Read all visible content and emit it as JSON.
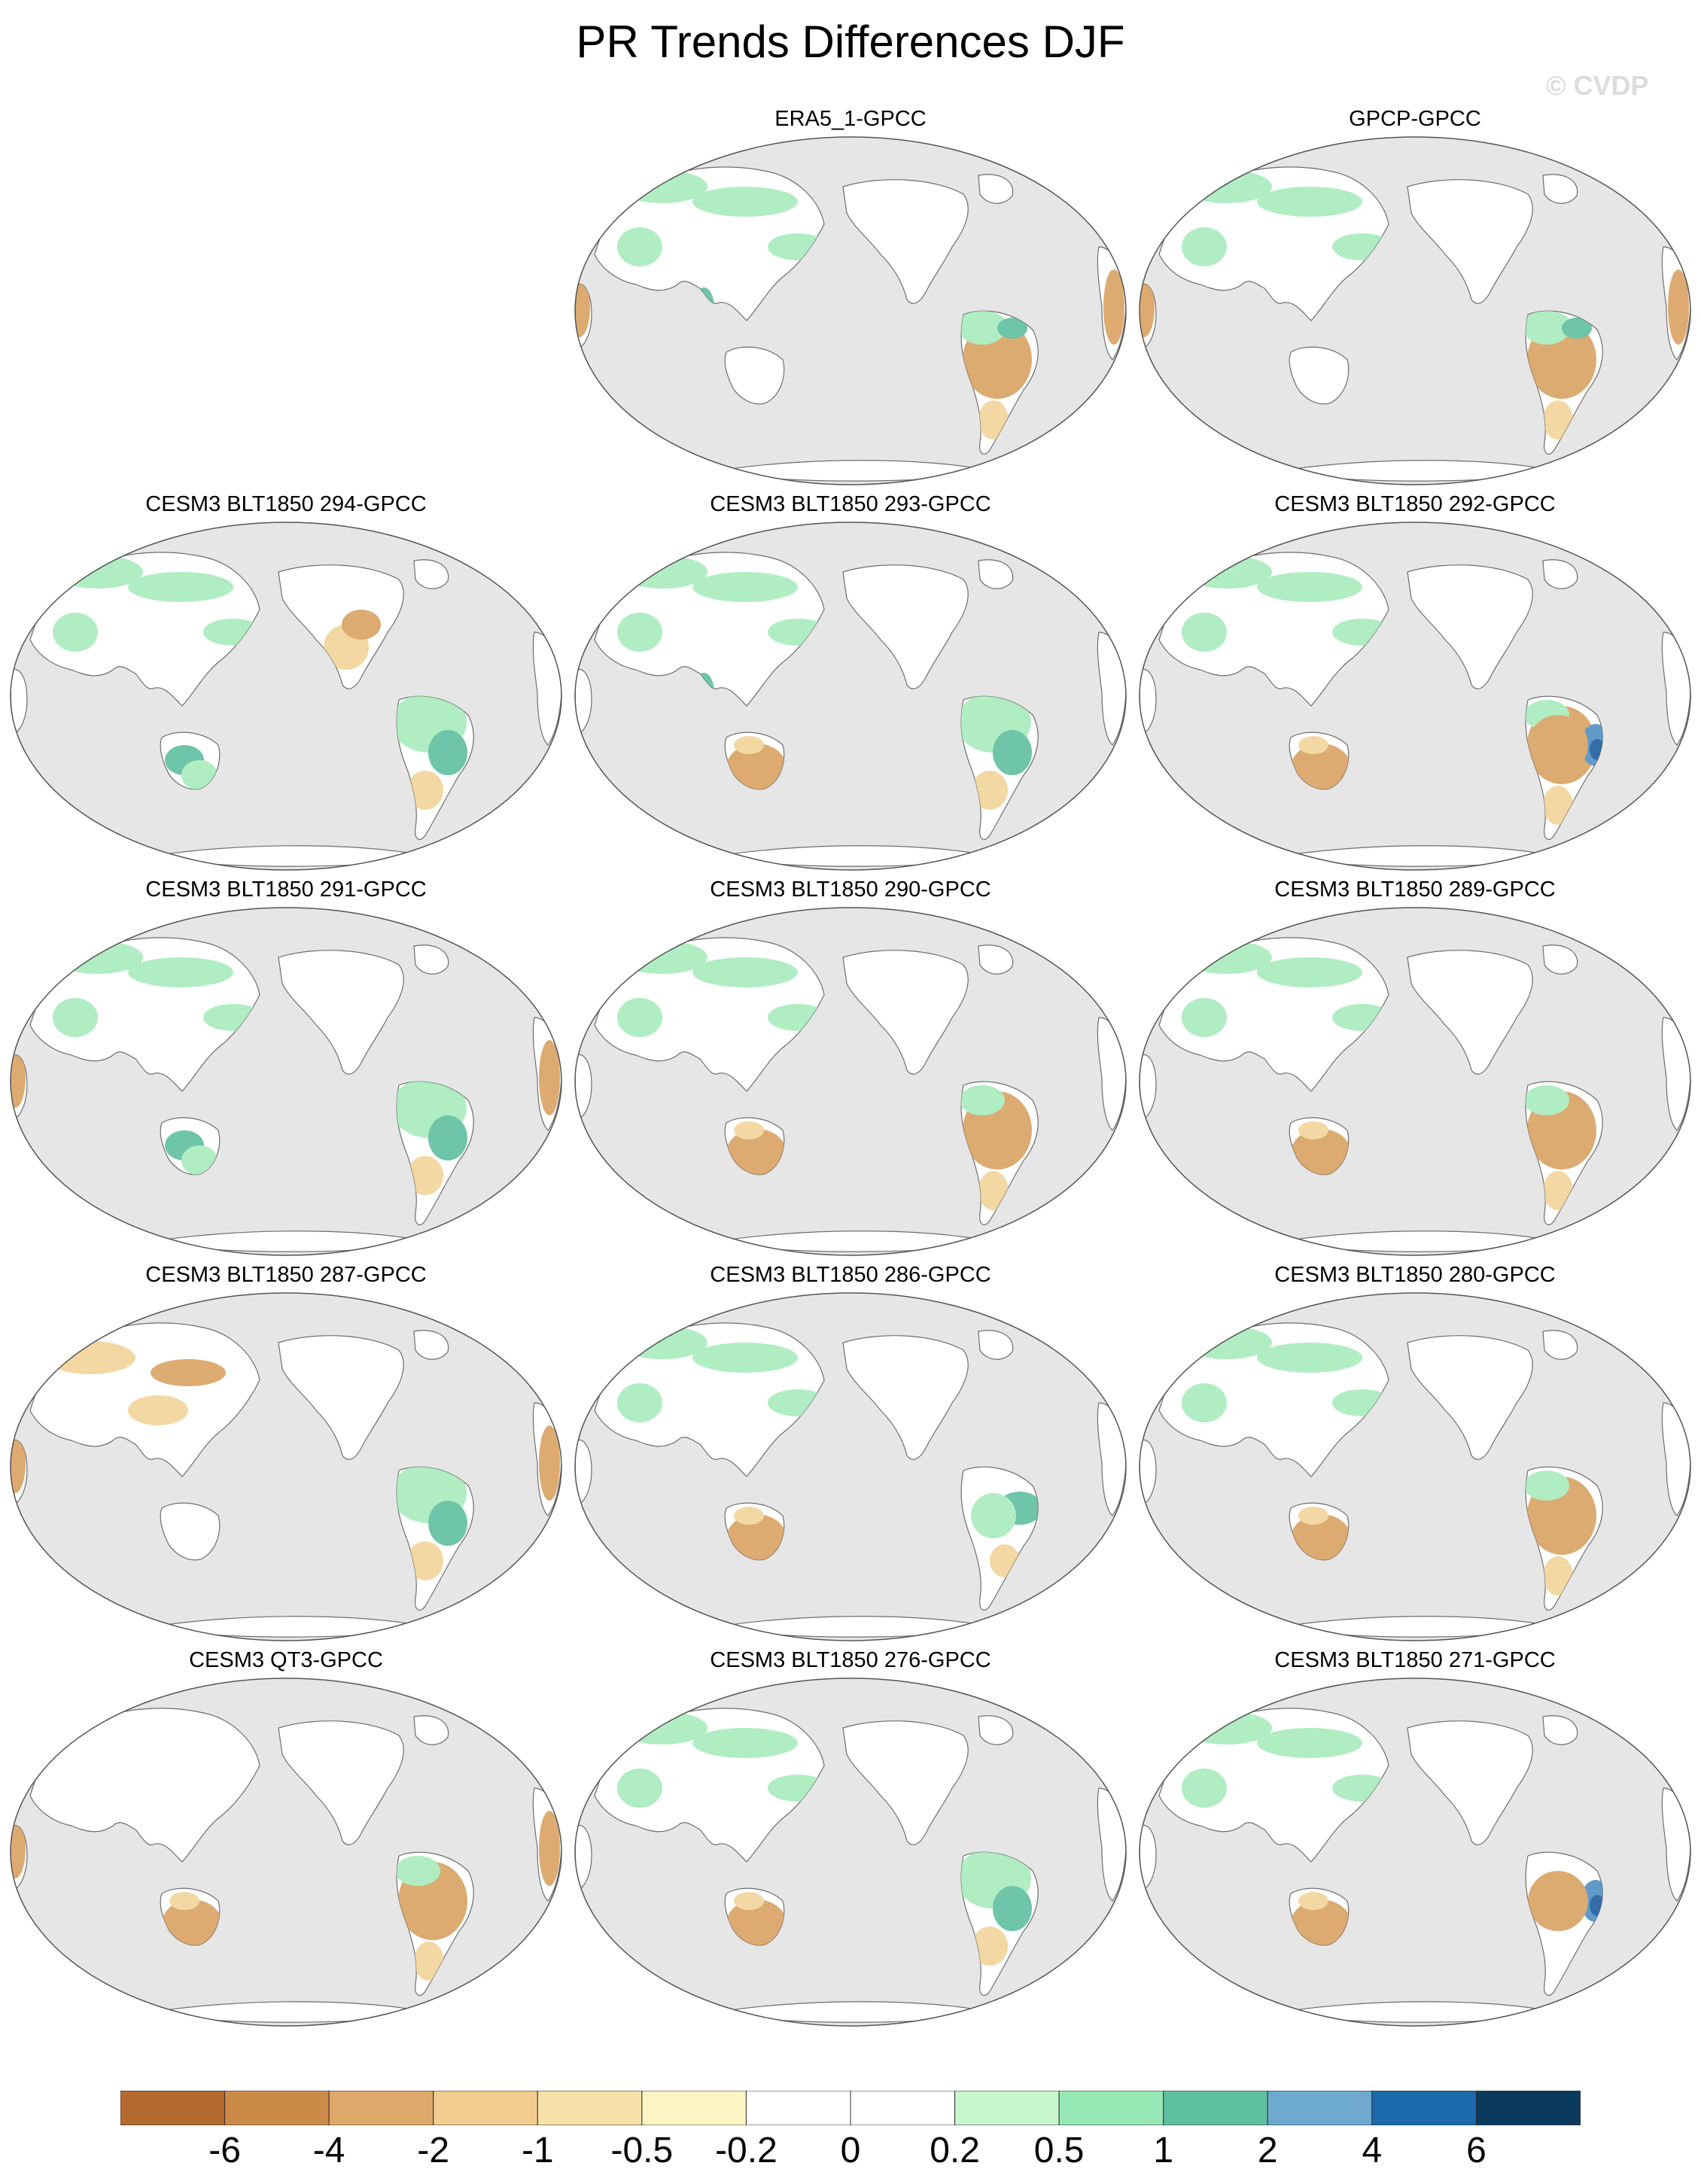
{
  "title": "PR Trends Differences DJF",
  "watermark": "© CVDP",
  "colors": {
    "ocean": "#e6e6e6",
    "coast": "#6e6e6e",
    "land": "#ffffff"
  },
  "land_shapes": "continents: Asia, Australia, North America, South America, Africa/Europe (both edges), Greenland, Antarctica",
  "panels": [
    {
      "title": "ERA5_1-GPCC",
      "grid_slot": "row1-col2",
      "pattern": [
        "brown-SA-interior",
        "green-SA-north",
        "brown-africa",
        "green-eurasia",
        "teal-maritime"
      ]
    },
    {
      "title": "GPCP-GPCC",
      "grid_slot": "row1-col3",
      "pattern": [
        "brown-SA-interior",
        "green-SA-north",
        "brown-africa",
        "green-eurasia"
      ]
    },
    {
      "title": "CESM3 BLT1850 294-GPCC",
      "grid_slot": "row2-col1",
      "pattern": [
        "green-SA",
        "teal-australia",
        "green-eurasia",
        "brown-namerica"
      ]
    },
    {
      "title": "CESM3 BLT1850 293-GPCC",
      "grid_slot": "row2-col2",
      "pattern": [
        "green-SA",
        "brown-australia",
        "green-eurasia",
        "teal-maritime"
      ]
    },
    {
      "title": "CESM3 BLT1850 292-GPCC",
      "grid_slot": "row2-col3",
      "pattern": [
        "brown-SA-interior",
        "blue-SA-east",
        "brown-australia",
        "green-eurasia"
      ]
    },
    {
      "title": "CESM3 BLT1850 291-GPCC",
      "grid_slot": "row3-col1",
      "pattern": [
        "green-SA",
        "teal-australia",
        "brown-africa",
        "green-eurasia"
      ]
    },
    {
      "title": "CESM3 BLT1850 290-GPCC",
      "grid_slot": "row3-col2",
      "pattern": [
        "brown-SA-interior",
        "brown-australia",
        "green-eurasia"
      ]
    },
    {
      "title": "CESM3 BLT1850 289-GPCC",
      "grid_slot": "row3-col3",
      "pattern": [
        "brown-SA-interior",
        "brown-australia",
        "green-eurasia"
      ]
    },
    {
      "title": "CESM3 BLT1850 287-GPCC",
      "grid_slot": "row4-col1",
      "pattern": [
        "green-SA",
        "brown-eurasia",
        "brown-africa"
      ]
    },
    {
      "title": "CESM3 BLT1850 286-GPCC",
      "grid_slot": "row4-col2",
      "pattern": [
        "teal-SA-east",
        "brown-australia",
        "green-eurasia"
      ]
    },
    {
      "title": "CESM3 BLT1850 280-GPCC",
      "grid_slot": "row4-col3",
      "pattern": [
        "brown-SA-interior",
        "brown-australia",
        "green-eurasia"
      ]
    },
    {
      "title": "CESM3 QT3-GPCC",
      "grid_slot": "row5-col1",
      "pattern": [
        "brown-SA-interior",
        "brown-australia",
        "brown-africa"
      ]
    },
    {
      "title": "CESM3 BLT1850 276-GPCC",
      "grid_slot": "row5-col2",
      "pattern": [
        "green-SA",
        "brown-australia",
        "green-eurasia"
      ]
    },
    {
      "title": "CESM3 BLT1850 271-GPCC",
      "grid_slot": "row5-col3",
      "pattern": [
        "blue-SA-east",
        "brown-australia",
        "green-eurasia"
      ]
    }
  ],
  "colorbar": {
    "colors": [
      "#b46a2f",
      "#cc8a48",
      "#dfa86b",
      "#f2cc8e",
      "#f6e2a8",
      "#fdf4c3",
      "#ffffff",
      "#ffffff",
      "#c7f5cc",
      "#98e8b5",
      "#5ec0a0",
      "#6eaad0",
      "#1a6aad",
      "#0a3a5e"
    ],
    "labels": [
      "-6",
      "-4",
      "-2",
      "-1",
      "-0.5",
      "-0.2",
      "0",
      "0.2",
      "0.5",
      "1",
      "2",
      "4",
      "6"
    ]
  }
}
